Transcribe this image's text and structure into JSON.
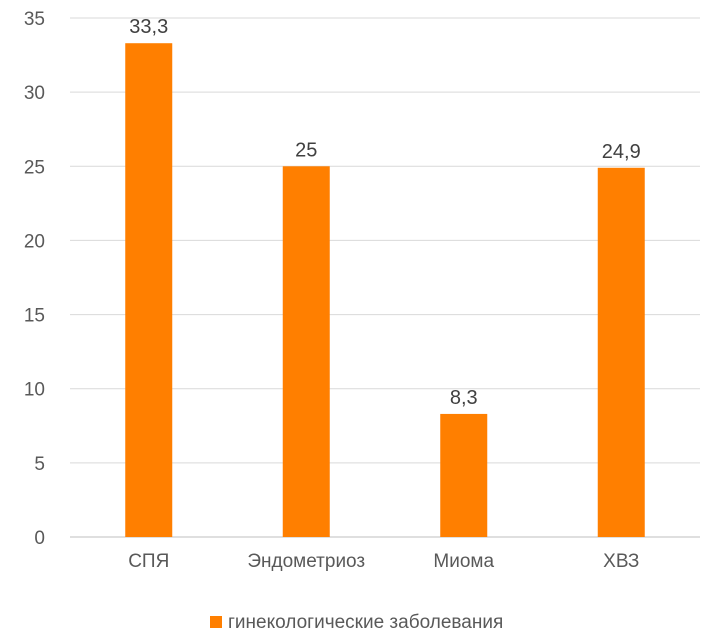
{
  "chart_data": {
    "type": "bar",
    "categories": [
      "СПЯ",
      "Эндометриоз",
      "Миома",
      "ХВЗ"
    ],
    "series": [
      {
        "name": "гинекологические заболевания",
        "values": [
          33.3,
          25,
          8.3,
          24.9
        ],
        "color": "#ff7f00"
      }
    ],
    "data_labels": [
      "33,3",
      "25",
      "8,3",
      "24,9"
    ],
    "yticks": [
      0,
      5,
      10,
      15,
      20,
      25,
      30,
      35
    ],
    "ylim": [
      0,
      35
    ],
    "grid": true,
    "legend_position": "bottom",
    "title": "",
    "xlabel": "",
    "ylabel": ""
  }
}
